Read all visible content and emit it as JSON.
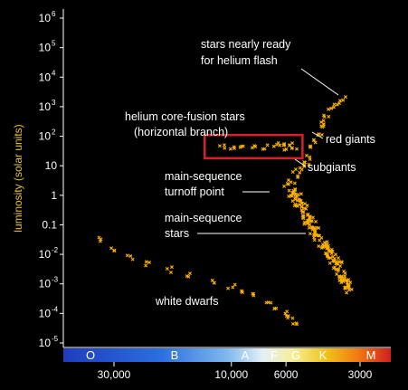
{
  "chart_data": {
    "type": "scatter",
    "title": "",
    "ylabel": "luminosity (solar units)",
    "xlabel": "",
    "y_scale": "log",
    "x_scale": "log (reversed)",
    "ylim": [
      1e-05,
      1000000
    ],
    "y_ticks": [
      {
        "base": "10",
        "exp": "6"
      },
      {
        "base": "10",
        "exp": "5"
      },
      {
        "base": "10",
        "exp": "4"
      },
      {
        "base": "10",
        "exp": "3"
      },
      {
        "base": "10",
        "exp": "2"
      },
      {
        "base": "10",
        "exp": ""
      },
      {
        "base": "1",
        "exp": ""
      },
      {
        "base": "0.1",
        "exp": ""
      },
      {
        "base": "10",
        "exp": "-2"
      },
      {
        "base": "10",
        "exp": "-3"
      },
      {
        "base": "10",
        "exp": "-4"
      },
      {
        "base": "10",
        "exp": "-5"
      }
    ],
    "x_ticks": [
      "30,000",
      "10,000",
      "6000",
      "3000"
    ],
    "x_tick_values": [
      30000,
      10000,
      6000,
      3000
    ],
    "spectral_classes": [
      "O",
      "B",
      "A",
      "F",
      "G",
      "K",
      "M"
    ],
    "annotations": {
      "flash_1": "stars nearly ready",
      "flash_2": "for helium flash",
      "hb_1": "helium core-fusion stars",
      "hb_2": "(horizontal branch)",
      "red_giants": "red giants",
      "subgiants": "subgiants",
      "turnoff_1": "main-sequence",
      "turnoff_2": "turnoff point",
      "ms_1": "main-sequence",
      "ms_2": "stars",
      "white_dwarfs": "white dwarfs"
    },
    "highlight_box": {
      "label": "horizontal branch",
      "temp_range": [
        12000,
        5500
      ],
      "lum_range": [
        18,
        110
      ]
    },
    "series": [
      {
        "name": "main-sequence stars",
        "points": [
          [
            5600,
            1.2
          ],
          [
            5450,
            0.9
          ],
          [
            5300,
            0.6
          ],
          [
            5150,
            0.4
          ],
          [
            5000,
            0.25
          ],
          [
            4850,
            0.15
          ],
          [
            4700,
            0.1
          ],
          [
            4550,
            0.06
          ],
          [
            4400,
            0.04
          ],
          [
            4250,
            0.025
          ],
          [
            4100,
            0.015
          ],
          [
            3950,
            0.01
          ],
          [
            3800,
            0.006
          ],
          [
            3700,
            0.004
          ],
          [
            3600,
            0.0025
          ],
          [
            3500,
            0.0015
          ],
          [
            3420,
            0.001
          ],
          [
            3350,
            0.0007
          ]
        ]
      },
      {
        "name": "subgiants",
        "points": [
          [
            5900,
            2
          ],
          [
            5700,
            3
          ],
          [
            5500,
            5
          ],
          [
            5300,
            7
          ],
          [
            5100,
            9
          ],
          [
            4900,
            12
          ]
        ]
      },
      {
        "name": "red giants",
        "points": [
          [
            4800,
            20
          ],
          [
            4650,
            40
          ],
          [
            4500,
            70
          ],
          [
            4400,
            120
          ],
          [
            4300,
            200
          ],
          [
            4200,
            300
          ],
          [
            4100,
            500
          ],
          [
            3900,
            800
          ],
          [
            3700,
            1200
          ],
          [
            3500,
            1800
          ]
        ]
      },
      {
        "name": "helium core-fusion stars (horizontal branch)",
        "points": [
          [
            11000,
            45
          ],
          [
            10000,
            42
          ],
          [
            9000,
            48
          ],
          [
            8000,
            40
          ],
          [
            7200,
            45
          ],
          [
            6600,
            50
          ],
          [
            6200,
            40
          ],
          [
            5900,
            45
          ],
          [
            5700,
            50
          ],
          [
            5500,
            40
          ]
        ]
      },
      {
        "name": "white dwarfs",
        "points": [
          [
            35000,
            0.03
          ],
          [
            30000,
            0.015
          ],
          [
            26000,
            0.008
          ],
          [
            22000,
            0.005
          ],
          [
            18000,
            0.003
          ],
          [
            15000,
            0.002
          ],
          [
            12000,
            0.0012
          ],
          [
            10000,
            0.0008
          ],
          [
            9000,
            0.0005
          ],
          [
            8000,
            0.0004
          ],
          [
            7000,
            0.0002
          ],
          [
            6500,
            0.00015
          ],
          [
            6000,
            0.0001
          ],
          [
            5800,
            7e-05
          ],
          [
            5500,
            5e-05
          ]
        ]
      }
    ],
    "colors": {
      "stars": "#ffb300",
      "box": "#d8202a",
      "axis": "#ffffff",
      "ylabel": "#e8c23a"
    }
  }
}
